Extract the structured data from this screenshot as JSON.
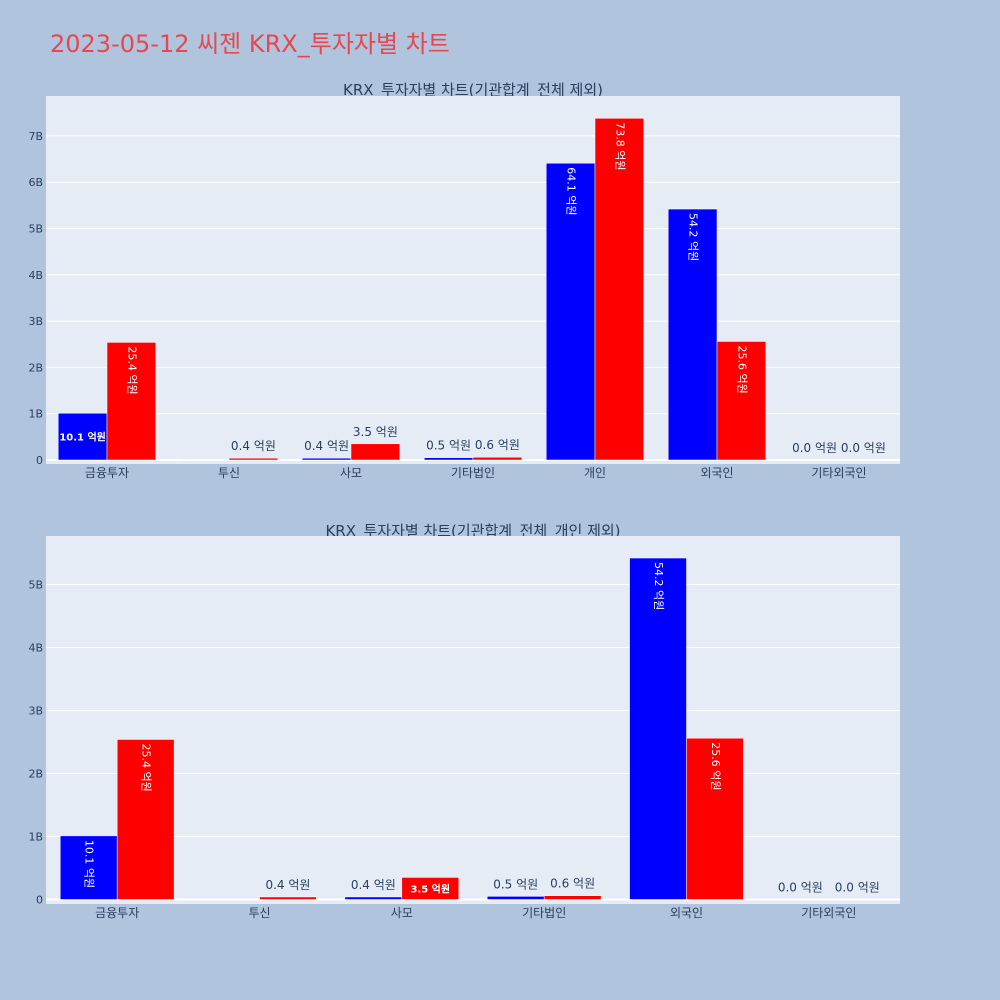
{
  "page_title": "2023-05-12 씨젠 KRX_투자자별 차트",
  "colors": {
    "buy": "#0000ff",
    "sell": "#ff0000",
    "plot_bg": "#e5ecf6",
    "paper_bg": "#b0c4de",
    "title": "#e8474f"
  },
  "chart_data": [
    {
      "type": "bar",
      "title": "KRX_투자자별 차트(기관합계_전체 제외)",
      "categories": [
        "금융투자",
        "투신",
        "사모",
        "기타법인",
        "개인",
        "외국인",
        "기타외국인"
      ],
      "series": [
        {
          "values": [
            1.01,
            0.004,
            0.04,
            0.05,
            6.41,
            5.42,
            0.0
          ],
          "labels": [
            "10.1 억원",
            "",
            "0.4 억원",
            "0.5 억원",
            "64.1 억원",
            "54.2 억원",
            "0.0 억원"
          ]
        },
        {
          "values": [
            2.54,
            0.04,
            0.35,
            0.06,
            7.38,
            2.56,
            0.0
          ],
          "labels": [
            "25.4 억원",
            "0.4 억원",
            "3.5 억원",
            "0.6 억원",
            "73.8 억원",
            "25.6 억원",
            "0.0 억원"
          ]
        }
      ],
      "ylim": [
        0,
        7.8
      ],
      "yticks": [
        "0",
        "1B",
        "2B",
        "3B",
        "4B",
        "5B",
        "6B",
        "7B"
      ],
      "grid": true
    },
    {
      "type": "bar",
      "title": "KRX_투자자별 차트(기관합계_전체_개인 제외)",
      "categories": [
        "금융투자",
        "투신",
        "사모",
        "기타법인",
        "외국인",
        "기타외국인"
      ],
      "series": [
        {
          "values": [
            1.01,
            0.004,
            0.04,
            0.05,
            5.42,
            0.0
          ],
          "labels": [
            "10.1 억원",
            "",
            "0.4 억원",
            "0.5 억원",
            "54.2 억원",
            "0.0 억원"
          ]
        },
        {
          "values": [
            2.54,
            0.04,
            0.35,
            0.06,
            2.56,
            0.0
          ],
          "labels": [
            "25.4 억원",
            "0.4 억원",
            "3.5 억원",
            "0.6 억원",
            "25.6 억원",
            "0.0 억원"
          ]
        }
      ],
      "ylim": [
        0,
        5.7
      ],
      "yticks": [
        "0",
        "1B",
        "2B",
        "3B",
        "4B",
        "5B"
      ],
      "grid": true
    }
  ]
}
